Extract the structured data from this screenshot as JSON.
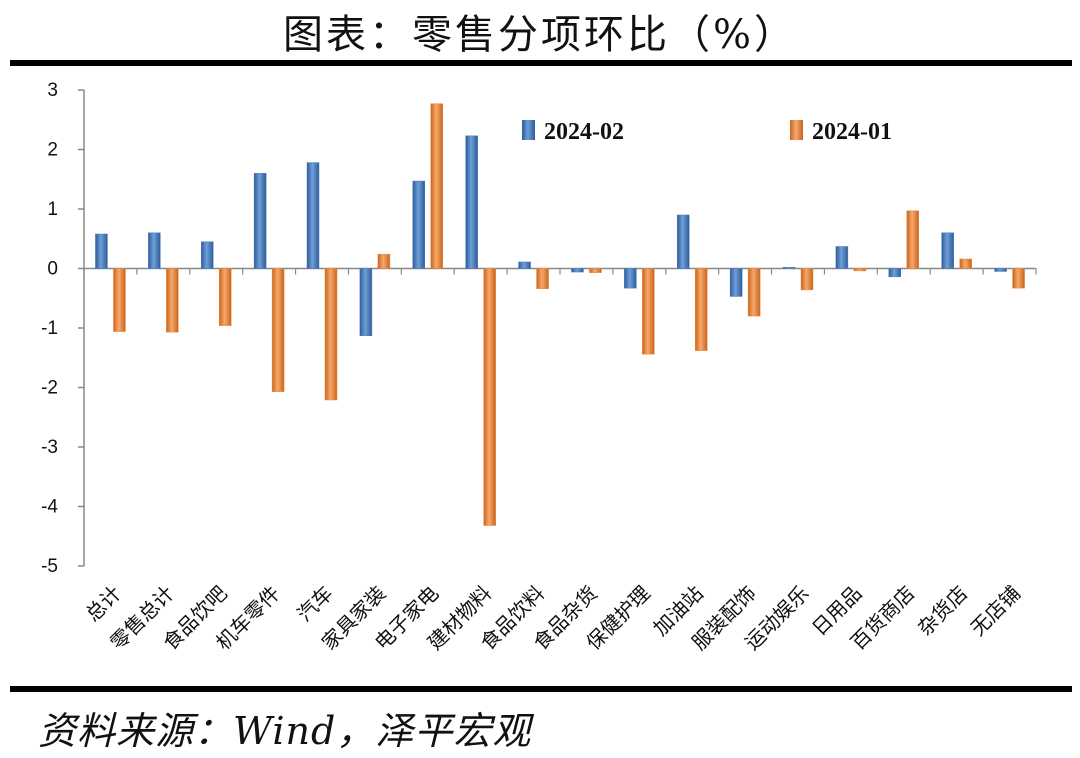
{
  "title": "图表：零售分项环比（%）",
  "source": "资料来源：Wind，泽平宏观",
  "colors": {
    "series_a": "#4A7EBB",
    "series_b": "#F08A3C"
  },
  "chart_data": {
    "type": "bar",
    "categories": [
      "总计",
      "零售总计",
      "食品饮吧",
      "机车零件",
      "汽车",
      "家具家装",
      "电子家电",
      "建材物料",
      "食品饮料",
      "食品杂货",
      "保健护理",
      "加油站",
      "服装配饰",
      "运动娱乐",
      "日用品",
      "百货商店",
      "杂货店",
      "无店铺"
    ],
    "series": [
      {
        "name": "2024-02",
        "values": [
          0.58,
          0.6,
          0.45,
          1.6,
          1.78,
          -1.13,
          1.47,
          2.23,
          0.11,
          -0.06,
          -0.33,
          0.9,
          -0.47,
          0.02,
          0.37,
          -0.14,
          0.6,
          -0.05
        ]
      },
      {
        "name": "2024-01",
        "values": [
          -1.06,
          -1.07,
          -0.96,
          -2.07,
          -2.21,
          0.24,
          2.77,
          -4.32,
          -0.34,
          -0.07,
          -1.44,
          -1.38,
          -0.8,
          -0.36,
          -0.04,
          0.97,
          0.16,
          -0.33
        ]
      }
    ],
    "ylim": [
      -5,
      3
    ],
    "yticks": [
      3,
      2,
      1,
      0,
      -1,
      -2,
      -3,
      -4,
      -5
    ],
    "legend": "top-right",
    "grid": false
  }
}
